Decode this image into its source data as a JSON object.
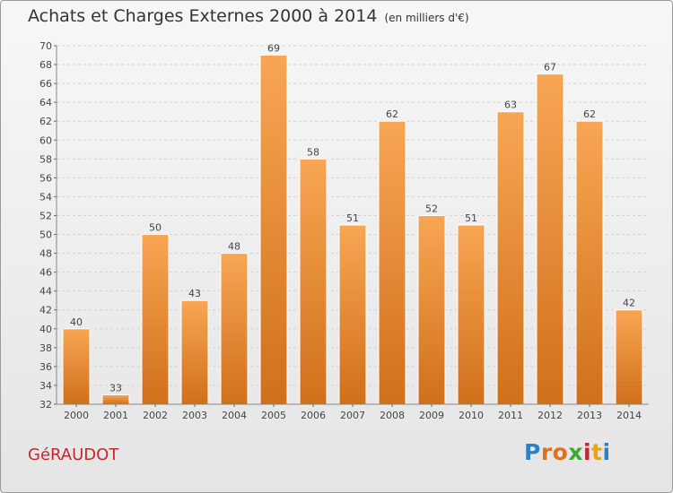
{
  "title": "Achats et Charges Externes 2000 à 2014",
  "title_unit": "(en milliers d'€)",
  "location": "GéRAUDOT",
  "logo_text": "Proxiti",
  "colors": {
    "bar_light": "#f8a654",
    "bar_dark": "#d0701a",
    "title": "#333333",
    "location": "#c1272d"
  },
  "chart_data": {
    "type": "bar",
    "categories": [
      "2000",
      "2001",
      "2002",
      "2003",
      "2004",
      "2005",
      "2006",
      "2007",
      "2008",
      "2009",
      "2010",
      "2011",
      "2012",
      "2013",
      "2014"
    ],
    "values": [
      40,
      33,
      50,
      43,
      48,
      69,
      58,
      51,
      62,
      52,
      51,
      63,
      67,
      62,
      42
    ],
    "ylim": [
      32,
      70
    ],
    "yticks": [
      32,
      34,
      36,
      38,
      40,
      42,
      44,
      46,
      48,
      50,
      52,
      54,
      56,
      58,
      60,
      62,
      64,
      66,
      68,
      70
    ],
    "grid": true,
    "data_labels": true
  }
}
